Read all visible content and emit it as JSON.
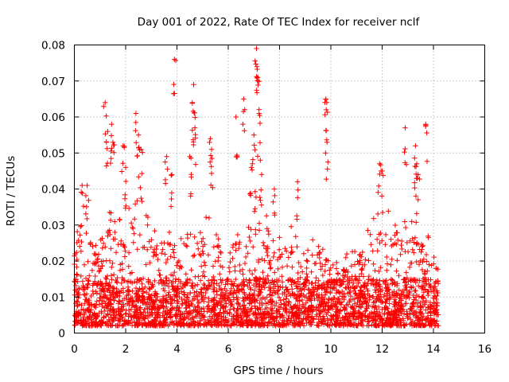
{
  "chart_data": {
    "type": "scatter",
    "title": "Day 001 of 2022, Rate Of TEC Index for receiver nclf",
    "xlabel": "GPS time / hours",
    "ylabel": "ROTI / TECUs",
    "xlim": [
      0,
      16
    ],
    "ylim": [
      0,
      0.08
    ],
    "grid": true,
    "marker": "plus",
    "color": "#ff0000",
    "x_ticks": [
      0,
      2,
      4,
      6,
      8,
      10,
      12,
      14,
      16
    ],
    "x_tick_labels": [
      "0",
      "2",
      "4",
      "6",
      "8",
      "10",
      "12",
      "14",
      "16"
    ],
    "y_ticks": [
      0,
      0.01,
      0.02,
      0.03,
      0.04,
      0.05,
      0.06,
      0.07,
      0.08
    ],
    "y_tick_labels": [
      "0",
      "0.01",
      "0.02",
      "0.03",
      "0.04",
      "0.05",
      "0.06",
      "0.07",
      "0.08"
    ],
    "series": [
      {
        "name": "ROTI",
        "x_range": [
          0.0,
          14.2
        ],
        "typical_range": [
          0.002,
          0.015
        ],
        "notable_points": [
          {
            "x": 0.3,
            "y": 0.041
          },
          {
            "x": 0.5,
            "y": 0.041
          },
          {
            "x": 1.2,
            "y": 0.064
          },
          {
            "x": 1.3,
            "y": 0.056
          },
          {
            "x": 1.45,
            "y": 0.058
          },
          {
            "x": 1.5,
            "y": 0.053
          },
          {
            "x": 1.9,
            "y": 0.052
          },
          {
            "x": 2.0,
            "y": 0.046
          },
          {
            "x": 2.4,
            "y": 0.061
          },
          {
            "x": 2.5,
            "y": 0.055
          },
          {
            "x": 2.6,
            "y": 0.051
          },
          {
            "x": 3.6,
            "y": 0.049
          },
          {
            "x": 3.8,
            "y": 0.044
          },
          {
            "x": 3.9,
            "y": 0.076
          },
          {
            "x": 4.5,
            "y": 0.049
          },
          {
            "x": 4.6,
            "y": 0.064
          },
          {
            "x": 4.65,
            "y": 0.069
          },
          {
            "x": 4.7,
            "y": 0.057
          },
          {
            "x": 5.3,
            "y": 0.054
          },
          {
            "x": 5.35,
            "y": 0.051
          },
          {
            "x": 6.3,
            "y": 0.06
          },
          {
            "x": 6.6,
            "y": 0.065
          },
          {
            "x": 6.9,
            "y": 0.046
          },
          {
            "x": 7.0,
            "y": 0.055
          },
          {
            "x": 7.1,
            "y": 0.079
          },
          {
            "x": 7.12,
            "y": 0.074
          },
          {
            "x": 7.15,
            "y": 0.071
          },
          {
            "x": 7.2,
            "y": 0.061
          },
          {
            "x": 7.25,
            "y": 0.048
          },
          {
            "x": 7.8,
            "y": 0.04
          },
          {
            "x": 8.7,
            "y": 0.042
          },
          {
            "x": 9.8,
            "y": 0.065
          },
          {
            "x": 9.82,
            "y": 0.062
          },
          {
            "x": 9.85,
            "y": 0.053
          },
          {
            "x": 11.9,
            "y": 0.047
          },
          {
            "x": 12.0,
            "y": 0.045
          },
          {
            "x": 12.9,
            "y": 0.057
          },
          {
            "x": 13.3,
            "y": 0.052
          },
          {
            "x": 13.35,
            "y": 0.047
          },
          {
            "x": 13.4,
            "y": 0.044
          },
          {
            "x": 13.7,
            "y": 0.058
          },
          {
            "x": 14.1,
            "y": 0.018
          }
        ]
      }
    ]
  }
}
